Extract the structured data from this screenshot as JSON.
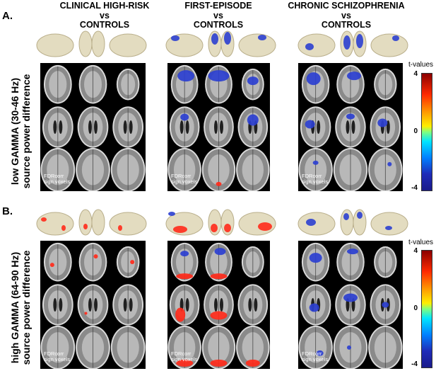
{
  "columns": [
    {
      "line1": "CLINICAL HIGH-RISK",
      "line2": "vs",
      "line3": "CONTROLS"
    },
    {
      "line1": "FIRST-EPISODE",
      "line2": "vs",
      "line3": "CONTROLS"
    },
    {
      "line1": "CHRONIC SCHIZOPHRENIA",
      "line2": "vs",
      "line3": "CONTROLS"
    }
  ],
  "panels": [
    {
      "letter": "A.",
      "row_label_1": "low GAMMA (30-46 Hz)",
      "row_label_2": "source power difference"
    },
    {
      "letter": "B.",
      "row_label_1": "high GAMMA (64-90 Hz)",
      "row_label_2": "source power difference"
    }
  ],
  "fdr_label_1": "FDRcorr",
  "fdr_label_2": "sign voxels",
  "colorbar": {
    "title": "t-values",
    "max": "4",
    "mid": "0",
    "min": "-4"
  },
  "colors": {
    "brain_surface": "#e3dcc0",
    "negative": "#2b3fd0",
    "positive": "#ff2a1a"
  }
}
